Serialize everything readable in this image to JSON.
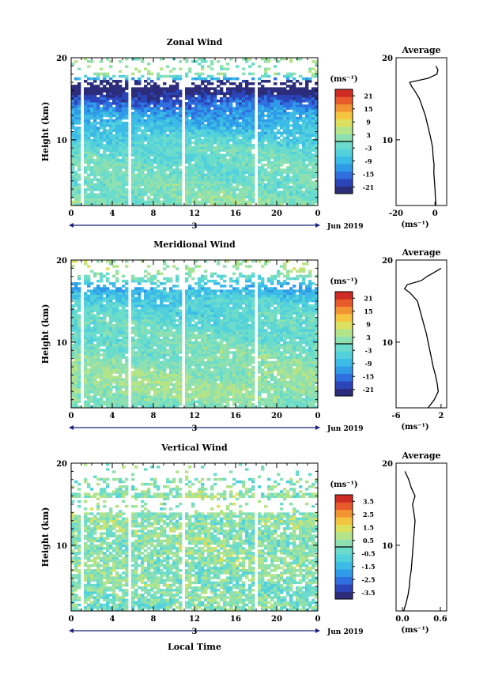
{
  "figure": {
    "xlabel_bottom": "Local Time",
    "date_label": "Jun 2019",
    "day_label": "3",
    "unit_label": "(ms⁻¹)",
    "avg_title": "Average",
    "avg_unit": "(ms⁻¹)"
  },
  "colors": {
    "scale": [
      "#2b2c7a",
      "#2b44b8",
      "#2f6fe0",
      "#2f9be8",
      "#3bbbe6",
      "#52d0dc",
      "#6bdccb",
      "#8fe0b0",
      "#b4e48a",
      "#dbe15f",
      "#f6c53f",
      "#f39433",
      "#e95a2b",
      "#cf2b25"
    ],
    "frame": "#000000"
  },
  "chart_data": [
    {
      "type": "heatmap",
      "title": "Zonal Wind",
      "ylabel": "Height (km)",
      "xlim": [
        0,
        24
      ],
      "ylim": [
        2,
        20
      ],
      "x_ticks": [
        "0",
        "4",
        "8",
        "12",
        "16",
        "20",
        "0"
      ],
      "y_ticks": [
        "10",
        "20"
      ],
      "colorbar_ticks": [
        "21",
        "15",
        "9",
        "3",
        "-3",
        "-9",
        "-15",
        "-21"
      ],
      "colorbar_range": [
        -24,
        24
      ],
      "gaps_hours": [
        1.2,
        5.8,
        10.9,
        17.9
      ],
      "profile_heights_km": [
        2,
        3,
        4,
        5,
        6,
        7,
        8,
        9,
        10,
        11,
        12,
        13,
        14,
        15,
        16,
        16.5,
        17,
        17.5,
        18,
        18.5,
        19
      ],
      "profile_values": [
        0.5,
        0.2,
        0.0,
        -0.3,
        -0.6,
        -0.5,
        -1.0,
        -1.2,
        -2.0,
        -3.0,
        -4.0,
        -5.0,
        -6.5,
        -8.0,
        -10.5,
        -12.0,
        -13.0,
        -3.5,
        1.0,
        1.5,
        0.5
      ],
      "avg_xlim": [
        -20,
        6
      ],
      "avg_xticks": [
        "-20",
        "0"
      ],
      "avg_xtick_values": [
        -20,
        0
      ],
      "avg_yticks": [
        "10",
        "20"
      ]
    },
    {
      "type": "heatmap",
      "title": "Meridional Wind",
      "ylabel": "Height (km)",
      "xlim": [
        0,
        24
      ],
      "ylim": [
        2,
        20
      ],
      "x_ticks": [
        "0",
        "4",
        "8",
        "12",
        "16",
        "20",
        "0"
      ],
      "y_ticks": [
        "10",
        "20"
      ],
      "colorbar_ticks": [
        "21",
        "15",
        "9",
        "3",
        "-3",
        "-9",
        "-15",
        "-21"
      ],
      "colorbar_range": [
        -24,
        24
      ],
      "gaps_hours": [
        1.2,
        5.8,
        10.9,
        17.9
      ],
      "profile_heights_km": [
        2,
        3,
        4,
        5,
        6,
        7,
        8,
        9,
        10,
        11,
        12,
        13,
        14,
        15,
        16,
        16.5,
        17,
        17.5,
        18,
        18.5,
        19
      ],
      "profile_values": [
        -0.3,
        0.8,
        1.5,
        1.3,
        1.0,
        0.6,
        0.3,
        0.0,
        -0.3,
        -0.6,
        -1.0,
        -1.4,
        -1.8,
        -2.2,
        -3.5,
        -4.5,
        -4.0,
        -1.5,
        -0.5,
        0.8,
        2.0
      ],
      "avg_xlim": [
        -6,
        3
      ],
      "avg_xticks": [
        "-6",
        "2"
      ],
      "avg_xtick_values": [
        -6,
        2
      ],
      "avg_yticks": [
        "10",
        "20"
      ]
    },
    {
      "type": "heatmap",
      "title": "Vertical Wind",
      "ylabel": "Height (km)",
      "xlabel": "Local Time",
      "xlim": [
        0,
        24
      ],
      "ylim": [
        2,
        20
      ],
      "x_ticks": [
        "0",
        "4",
        "8",
        "12",
        "16",
        "20",
        "0"
      ],
      "y_ticks": [
        "10",
        "20"
      ],
      "colorbar_ticks": [
        "3.5",
        "2.5",
        "1.5",
        "0.5",
        "-0.5",
        "-1.5",
        "-2.5",
        "-3.5"
      ],
      "colorbar_range": [
        -4,
        4
      ],
      "gaps_hours": [
        1.2,
        5.8,
        10.9,
        17.9
      ],
      "profile_heights_km": [
        2,
        3,
        4,
        5,
        6,
        7,
        8,
        9,
        10,
        11,
        12,
        13,
        14,
        15,
        16,
        17,
        18,
        19
      ],
      "profile_values": [
        0.02,
        0.06,
        0.09,
        0.11,
        0.12,
        0.14,
        0.15,
        0.16,
        0.17,
        0.18,
        0.19,
        0.2,
        0.18,
        0.16,
        0.2,
        0.14,
        0.1,
        0.04
      ],
      "avg_xlim": [
        -0.1,
        0.7
      ],
      "avg_xticks": [
        "0.0",
        "0.6"
      ],
      "avg_xtick_values": [
        0.0,
        0.6
      ],
      "avg_yticks": [
        "10",
        "20"
      ]
    }
  ]
}
